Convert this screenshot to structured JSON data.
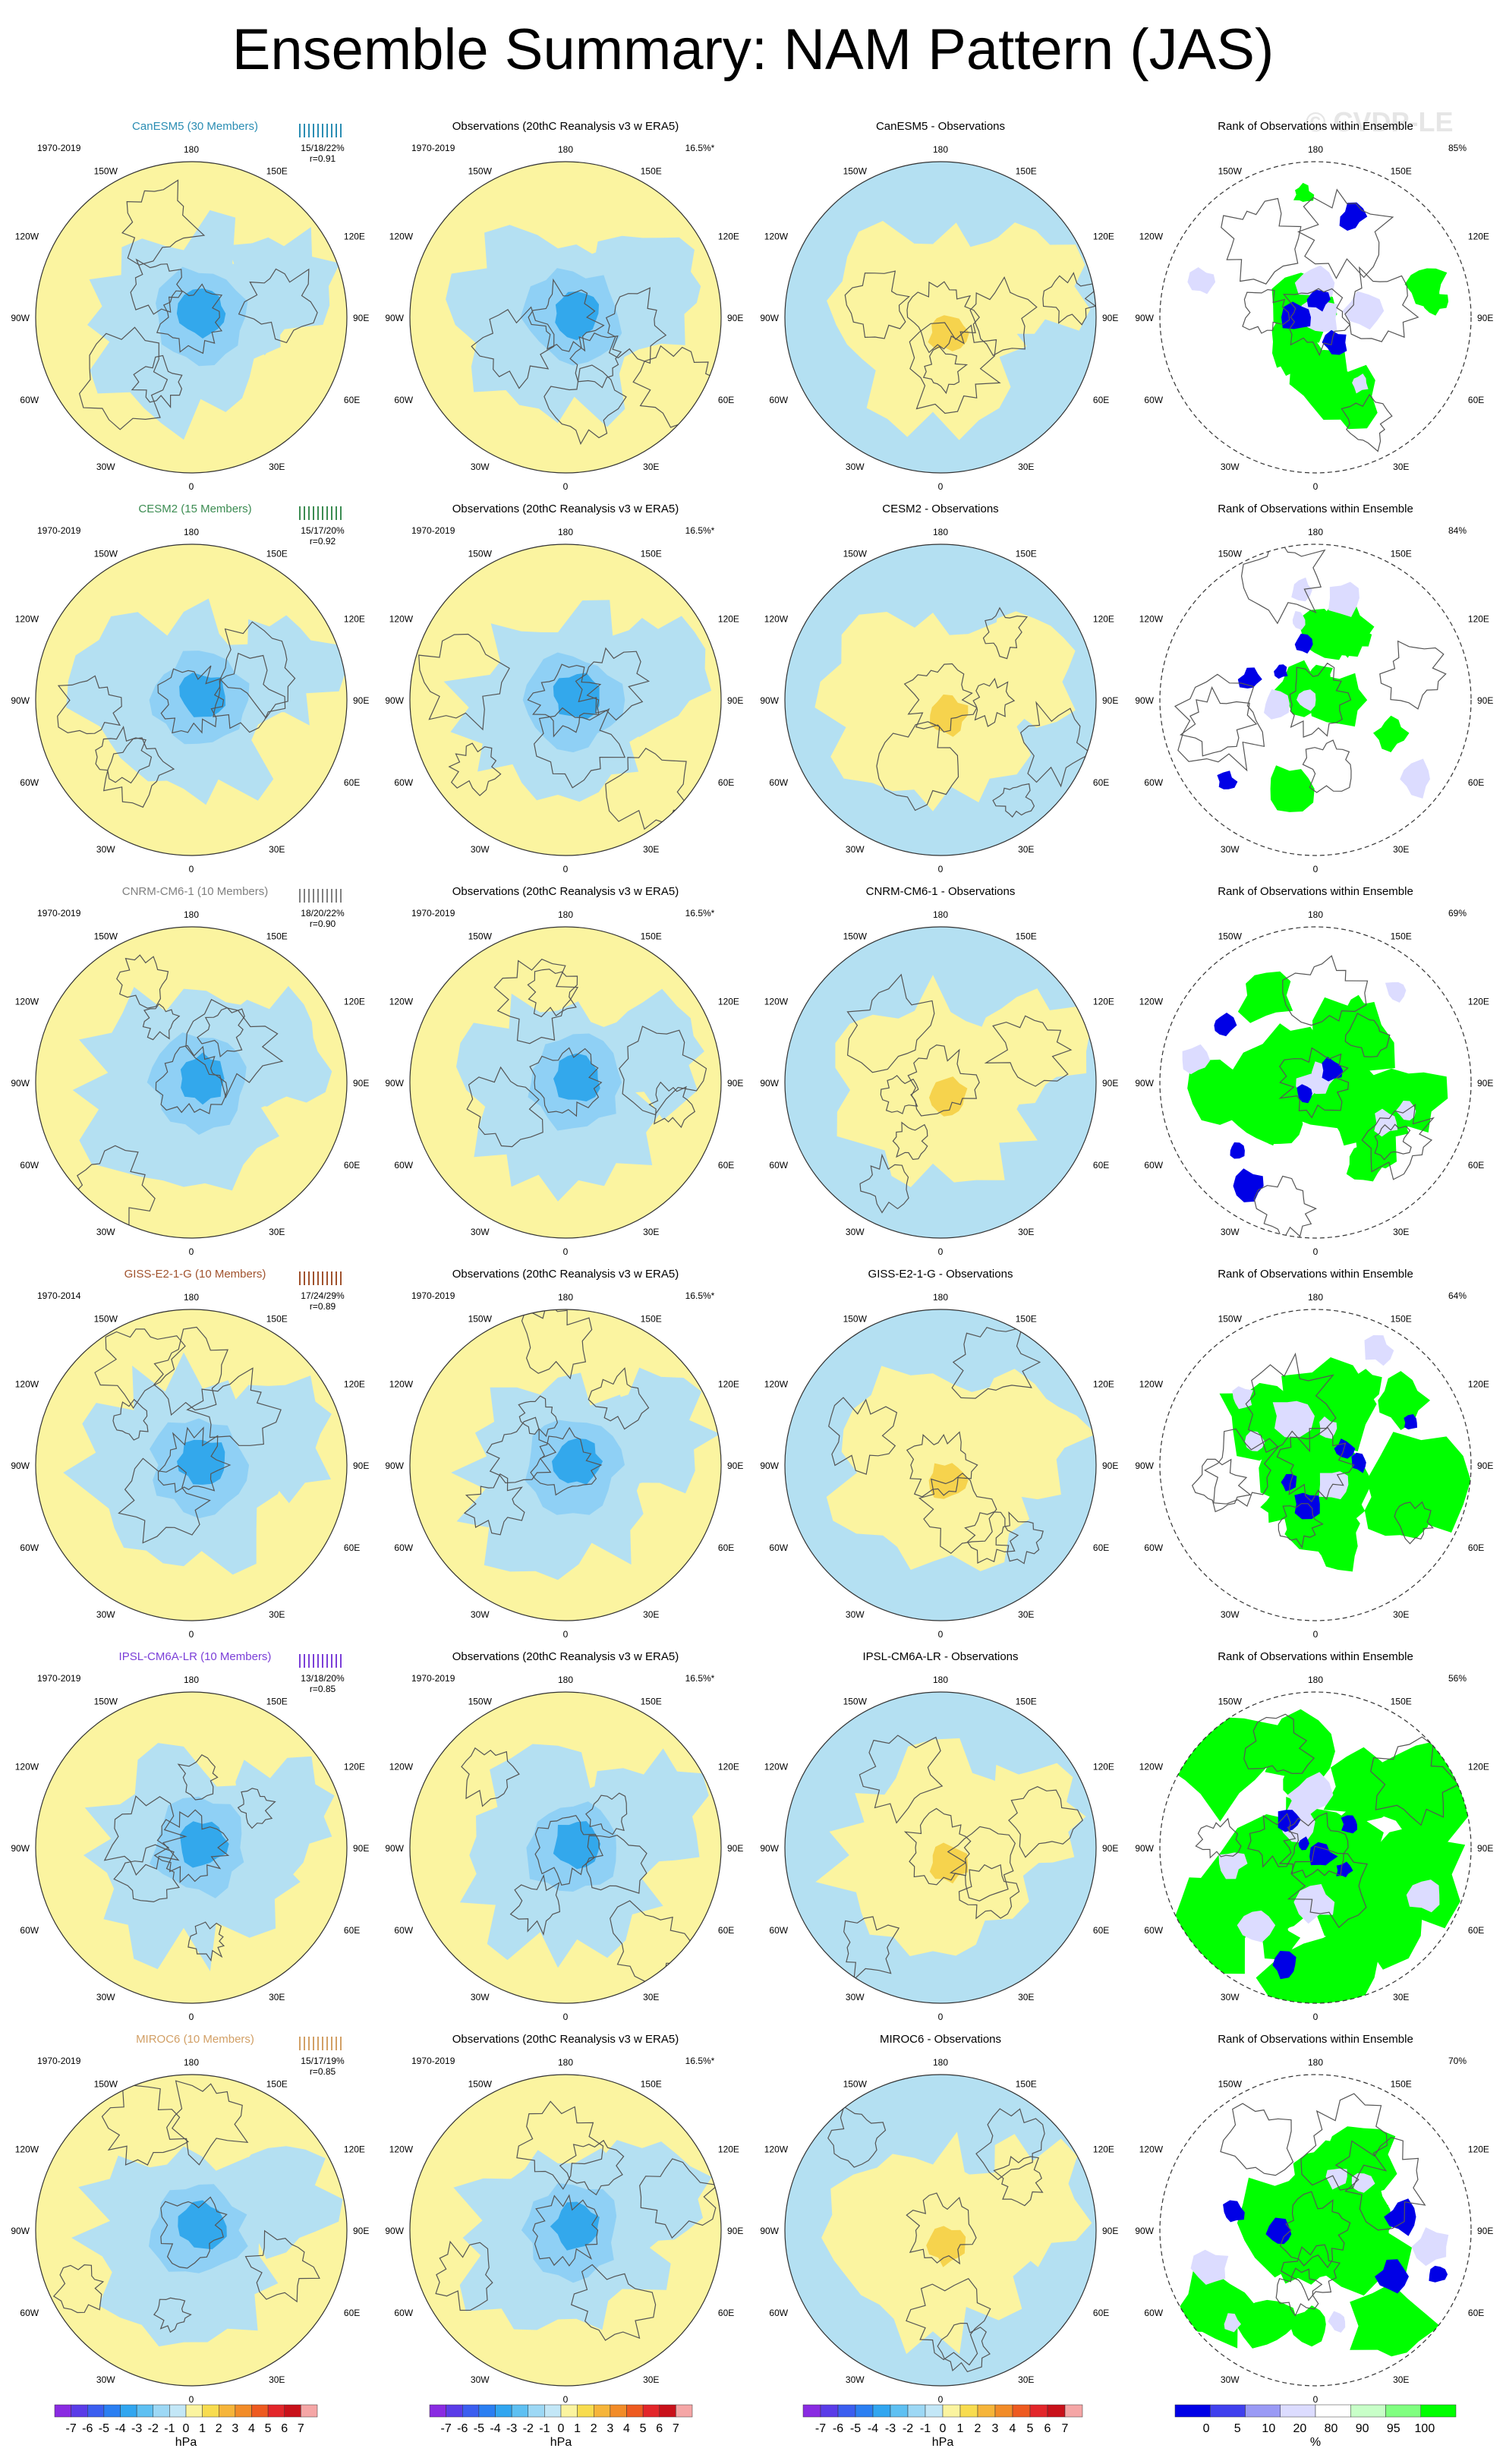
{
  "title": "Ensemble Summary: NAM Pattern (JAS)",
  "watermark": "© CVDP-LE",
  "colors": {
    "neg4": "#1e6de8",
    "neg3": "#33a8ec",
    "neg2": "#8fd0f5",
    "neg1": "#b4e0f2",
    "pos1": "#fbf4a0",
    "pos2": "#f6d34d",
    "pos3": "#f0b830",
    "rank_high": "#00ff00",
    "rank_mid": "#c8ffc8",
    "rank_low": "#0000e6",
    "rank_lowmid": "#dcdcff"
  },
  "lon_labels": {
    "top": "180",
    "top_left": "150W",
    "top_right": "150E",
    "upper_left": "120W",
    "upper_right": "120E",
    "left": "90W",
    "right": "90E",
    "lower_left": "60W",
    "lower_right": "60E",
    "bottom_left": "30W",
    "bottom_right": "30E",
    "bottom": "0"
  },
  "rows": [
    {
      "model": "CanESM5 (30 Members)",
      "model_color": "#2a8db3",
      "period": "1970-2019",
      "stats": "15/18/22%",
      "r": "r=0.91",
      "obs_title": "Observations (20thC Reanalysis v3 w ERA5)",
      "obs_period": "1970-2019",
      "obs_pct": "16.5%*",
      "diff_title": "CanESM5 - Observations",
      "rank_title": "Rank of Observations within Ensemble",
      "rank_pct": "85%",
      "rank_fraction": 0.2
    },
    {
      "model": "CESM2 (15 Members)",
      "model_color": "#3c8c52",
      "period": "1970-2019",
      "stats": "15/17/20%",
      "r": "r=0.92",
      "obs_title": "Observations (20thC Reanalysis v3 w ERA5)",
      "obs_period": "1970-2019",
      "obs_pct": "16.5%*",
      "diff_title": "CESM2 - Observations",
      "rank_title": "Rank of Observations within Ensemble",
      "rank_pct": "84%",
      "rank_fraction": 0.18
    },
    {
      "model": "CNRM-CM6-1 (10 Members)",
      "model_color": "#808080",
      "period": "1970-2019",
      "stats": "18/20/22%",
      "r": "r=0.90",
      "obs_title": "Observations (20thC Reanalysis v3 w ERA5)",
      "obs_period": "1970-2019",
      "obs_pct": "16.5%*",
      "diff_title": "CNRM-CM6-1 - Observations",
      "rank_title": "Rank of Observations within Ensemble",
      "rank_pct": "69%",
      "rank_fraction": 0.55
    },
    {
      "model": "GISS-E2-1-G (10 Members)",
      "model_color": "#a0522d",
      "period": "1970-2014",
      "stats": "17/24/29%",
      "r": "r=0.89",
      "obs_title": "Observations (20thC Reanalysis v3 w ERA5)",
      "obs_period": "1970-2019",
      "obs_pct": "16.5%*",
      "diff_title": "GISS-E2-1-G - Observations",
      "rank_title": "Rank of Observations within Ensemble",
      "rank_pct": "64%",
      "rank_fraction": 0.6
    },
    {
      "model": "IPSL-CM6A-LR (10 Members)",
      "model_color": "#7b3fd8",
      "period": "1970-2019",
      "stats": "13/18/20%",
      "r": "r=0.85",
      "obs_title": "Observations (20thC Reanalysis v3 w ERA5)",
      "obs_period": "1970-2019",
      "obs_pct": "16.5%*",
      "diff_title": "IPSL-CM6A-LR - Observations",
      "rank_title": "Rank of Observations within Ensemble",
      "rank_pct": "56%",
      "rank_fraction": 0.75
    },
    {
      "model": "MIROC6 (10 Members)",
      "model_color": "#d2a066",
      "period": "1970-2019",
      "stats": "15/17/19%",
      "r": "r=0.85",
      "obs_title": "Observations (20thC Reanalysis v3 w ERA5)",
      "obs_period": "1970-2019",
      "obs_pct": "16.5%*",
      "diff_title": "MIROC6 - Observations",
      "rank_title": "Rank of Observations within Ensemble",
      "rank_pct": "70%",
      "rank_fraction": 0.5
    }
  ],
  "colorbars": {
    "hpa": {
      "unit": "hPa",
      "labels": [
        "-7",
        "-6",
        "-5",
        "-4",
        "-3",
        "-2",
        "-1",
        "0",
        "1",
        "2",
        "3",
        "4",
        "5",
        "6",
        "7"
      ],
      "colors": [
        "#8a2be2",
        "#5a3ce8",
        "#3b5ef0",
        "#2b7ff2",
        "#31a6f0",
        "#5ec0f2",
        "#9dd8f5",
        "#c3e7f7",
        "#fbf4a0",
        "#f8dc4f",
        "#f6b53a",
        "#f28c28",
        "#ee5a20",
        "#e3262a",
        "#c9111a",
        "#f5a6a6"
      ]
    },
    "rank": {
      "unit": "%",
      "labels": [
        "0",
        "5",
        "10",
        "20",
        "80",
        "90",
        "95",
        "100"
      ],
      "colors": [
        "#0000e6",
        "#4040ee",
        "#9a9af5",
        "#dcdcff",
        "#ffffff",
        "#c8ffc8",
        "#80ff80",
        "#00ff00"
      ]
    }
  }
}
